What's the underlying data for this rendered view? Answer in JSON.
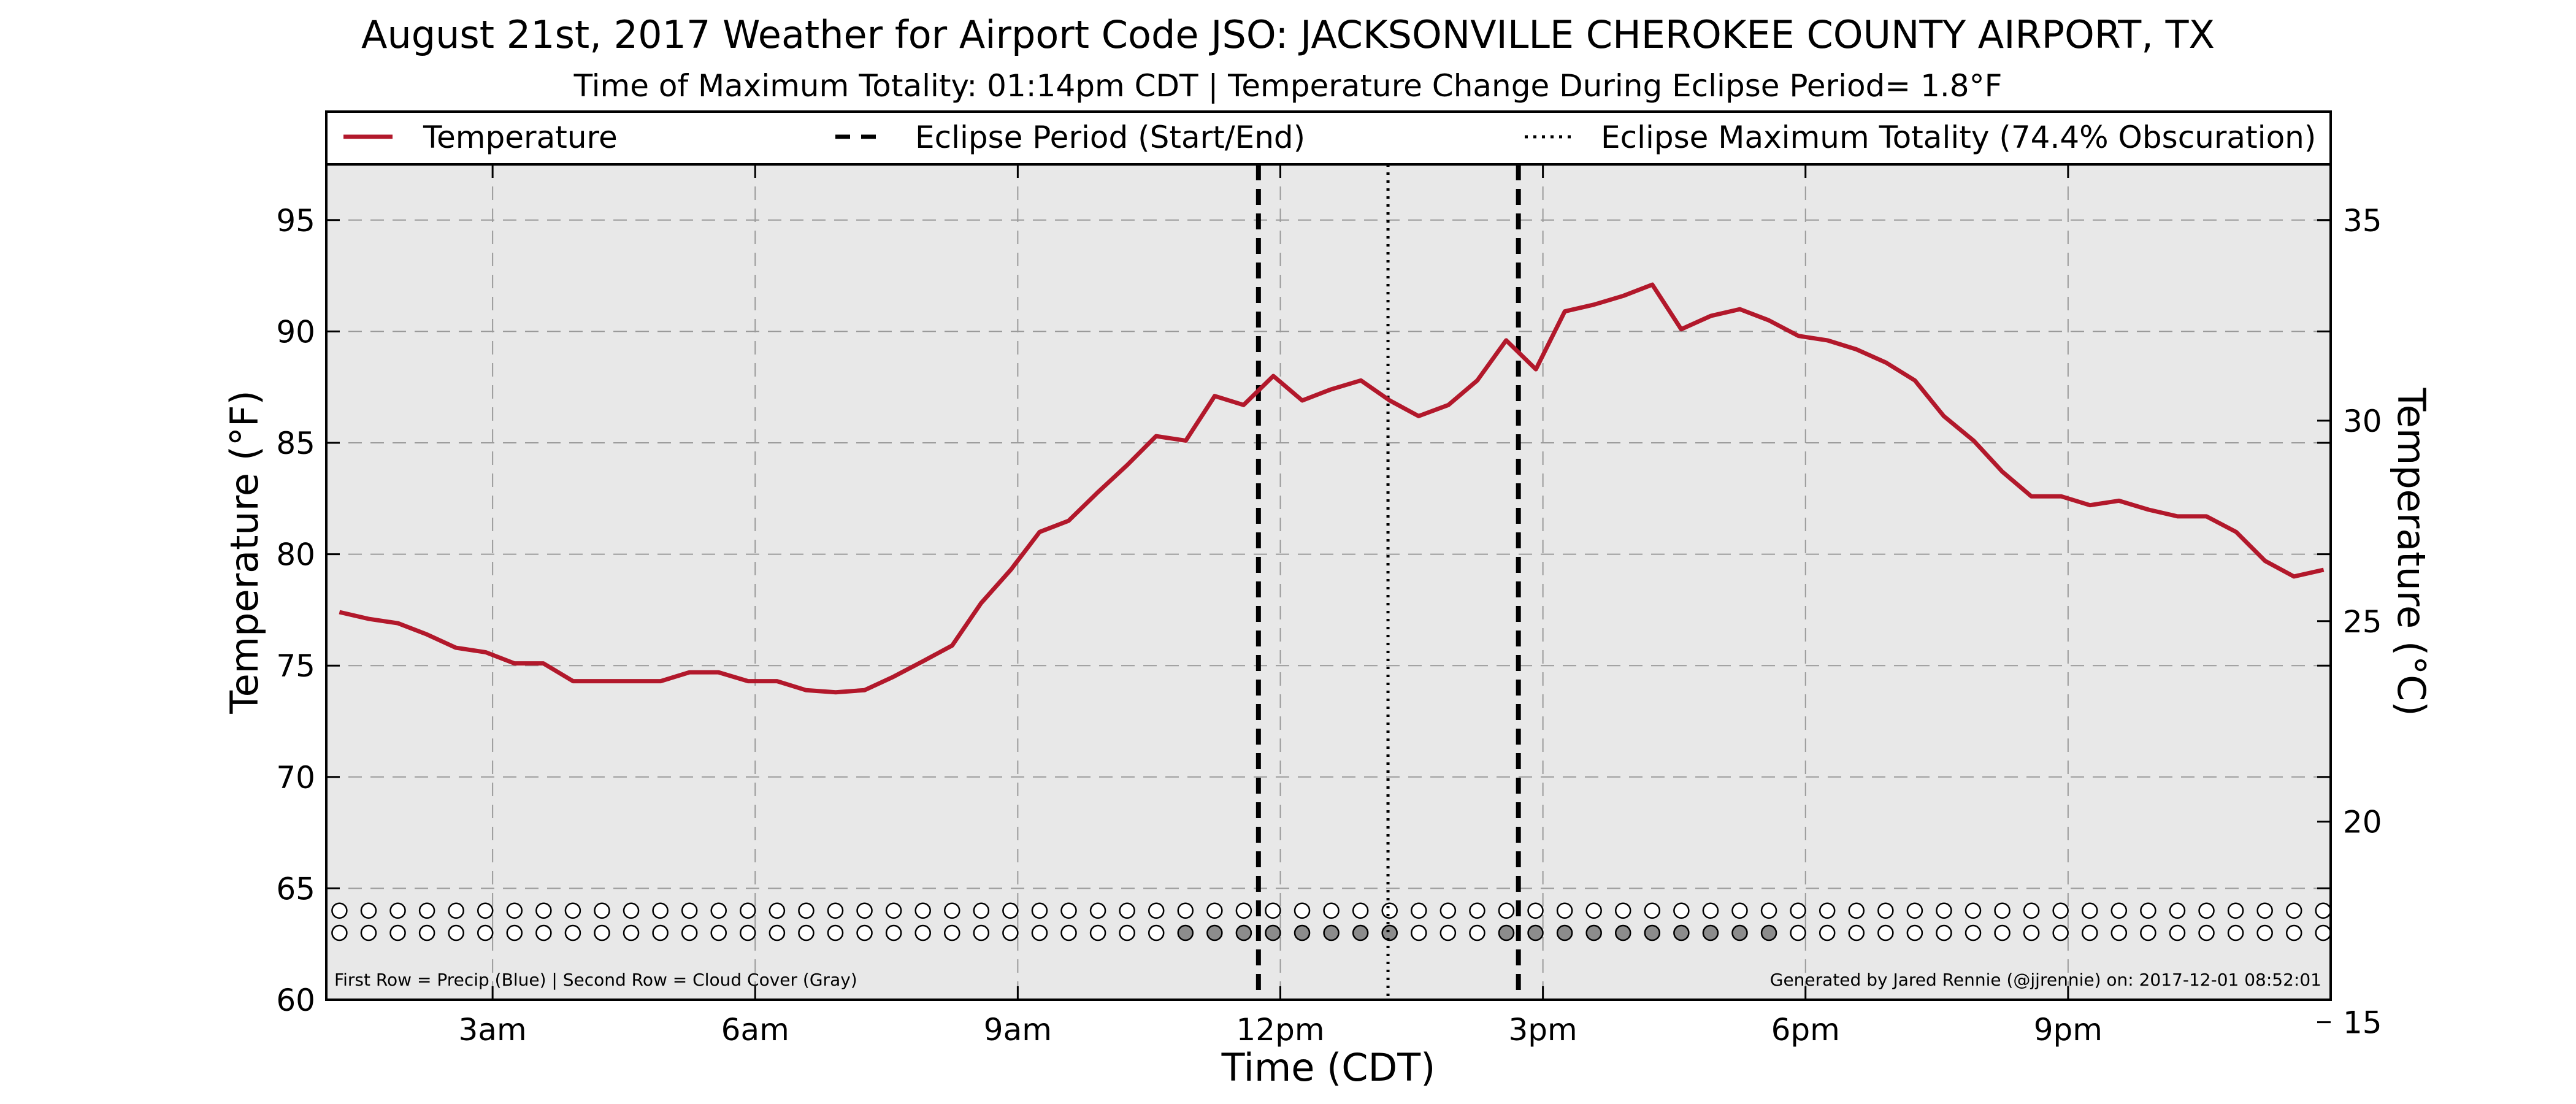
{
  "chart_data": {
    "type": "line",
    "title": "August 21st, 2017 Weather for Airport Code JSO: JACKSONVILLE CHEROKEE COUNTY AIRPORT, TX",
    "subtitle": "Time of Maximum Totality: 01:14pm CDT | Temperature Change During Eclipse Period= 1.8°F",
    "xlabel": "Time (CDT)",
    "ylabel": "Temperature (°F)",
    "ylabel_right": "Temperature (°C)",
    "xlim": [
      1.1,
      24
    ],
    "ylim": [
      60,
      97.5
    ],
    "ylim_right_celsius": [
      15.56,
      36.39
    ],
    "grid": true,
    "x_ticks": [
      {
        "x": 3,
        "label": "3am"
      },
      {
        "x": 6,
        "label": "6am"
      },
      {
        "x": 9,
        "label": "9am"
      },
      {
        "x": 12,
        "label": "12pm"
      },
      {
        "x": 15,
        "label": "3pm"
      },
      {
        "x": 18,
        "label": "6pm"
      },
      {
        "x": 21,
        "label": "9pm"
      }
    ],
    "y_ticks": [
      60,
      65,
      70,
      75,
      80,
      85,
      90,
      95
    ],
    "y_ticks_right": [
      15,
      20,
      25,
      30,
      35
    ],
    "legend": {
      "placement": "top",
      "items": [
        {
          "label": "Temperature",
          "style": "solid",
          "color": "#b2182b"
        },
        {
          "label": "Eclipse Period (Start/End)",
          "style": "dashed",
          "color": "#000000"
        },
        {
          "label": "Eclipse Maximum Totality (74.4% Obscuration)",
          "style": "dotted",
          "color": "#000000"
        }
      ]
    },
    "vlines": [
      {
        "x": 11.75,
        "style": "dashed",
        "name": "eclipse-start-line"
      },
      {
        "x": 13.23,
        "style": "dotted",
        "name": "max-totality-line"
      },
      {
        "x": 14.72,
        "style": "dashed",
        "name": "eclipse-end-line"
      }
    ],
    "series": [
      {
        "name": "Temperature",
        "color": "#b2182b",
        "x": [
          1.25,
          1.58,
          1.92,
          2.25,
          2.58,
          2.92,
          3.25,
          3.58,
          3.92,
          4.25,
          4.58,
          4.92,
          5.25,
          5.58,
          5.92,
          6.25,
          6.58,
          6.92,
          7.25,
          7.58,
          7.92,
          8.25,
          8.58,
          8.92,
          9.25,
          9.58,
          9.92,
          10.25,
          10.58,
          10.92,
          11.25,
          11.58,
          11.92,
          12.25,
          12.58,
          12.92,
          13.25,
          13.58,
          13.92,
          14.25,
          14.58,
          14.92,
          15.25,
          15.58,
          15.92,
          16.25,
          16.58,
          16.92,
          17.25,
          17.58,
          17.92,
          18.25,
          18.58,
          18.92,
          19.25,
          19.58,
          19.92,
          20.25,
          20.58,
          20.92,
          21.25,
          21.58,
          21.92,
          22.25,
          22.58,
          22.92,
          23.25,
          23.58,
          23.92
        ],
        "values": [
          77.4,
          77.1,
          76.9,
          76.4,
          75.8,
          75.6,
          75.1,
          75.1,
          74.3,
          74.3,
          74.3,
          74.3,
          74.7,
          74.7,
          74.3,
          74.3,
          73.9,
          73.8,
          73.9,
          74.5,
          75.2,
          75.9,
          77.8,
          79.3,
          81.0,
          81.5,
          82.8,
          84.0,
          85.3,
          85.1,
          87.1,
          86.7,
          88.0,
          86.9,
          87.4,
          87.8,
          86.9,
          86.2,
          86.7,
          87.8,
          89.6,
          88.3,
          90.9,
          91.2,
          91.6,
          92.1,
          90.1,
          90.7,
          91.0,
          90.5,
          89.8,
          89.6,
          89.2,
          88.6,
          87.8,
          86.2,
          85.1,
          83.7,
          82.6,
          82.6,
          82.2,
          82.4,
          82.0,
          81.7,
          81.7,
          81.0,
          79.7,
          79.0,
          79.3
        ]
      }
    ],
    "rows": {
      "first_row_y": 64,
      "second_row_y": 63,
      "x_start": 1.25,
      "x_step": 0.3333,
      "count": 69,
      "first_row_filled": [],
      "second_row_filled": [
        29,
        30,
        31,
        32,
        33,
        34,
        35,
        36,
        40,
        41,
        42,
        43,
        44,
        45,
        46,
        47,
        48,
        49
      ],
      "open_color": "#ffffff",
      "filled_color": "#8c8c8c"
    },
    "footnote_left": "First Row = Precip (Blue) | Second Row = Cloud Cover (Gray)",
    "footnote_right": "Generated by Jared Rennie (@jjrennie) on: 2017-12-01 08:52:01",
    "colors": {
      "plot_bg": "#e8e8e8",
      "grid": "#9a9a9a",
      "temperature": "#b2182b"
    }
  }
}
